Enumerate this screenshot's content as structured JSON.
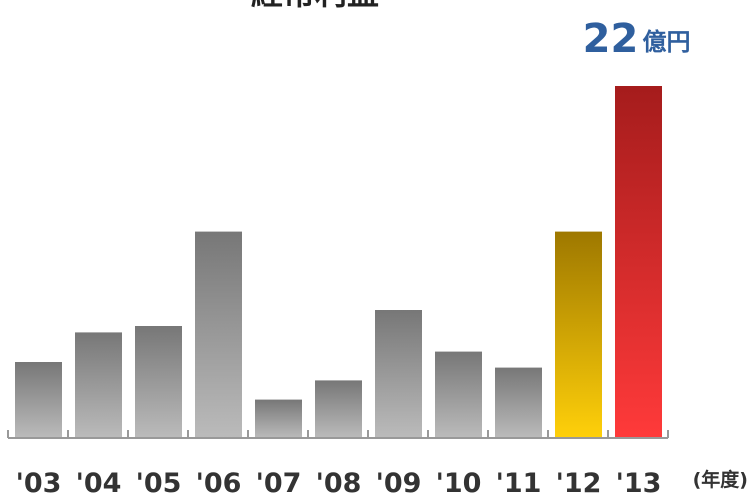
{
  "chart_data": {
    "type": "bar",
    "title": "経常利益",
    "categories": [
      "'03",
      "'04",
      "'05",
      "'06",
      "'07",
      "'08",
      "'09",
      "'10",
      "'11",
      "'12",
      "'13"
    ],
    "values": [
      4.75,
      6.6,
      7.0,
      12.9,
      2.4,
      3.6,
      8.0,
      5.4,
      4.4,
      12.9,
      22
    ],
    "value_labels": [
      null,
      null,
      null,
      null,
      null,
      null,
      null,
      null,
      null,
      null,
      "22"
    ],
    "value_unit": "億円",
    "x_label": "(年度)",
    "colors": [
      "#777777",
      "#777777",
      "#777777",
      "#777777",
      "#777777",
      "#777777",
      "#777777",
      "#777777",
      "#777777",
      "#9e7800",
      "#a51c1c"
    ],
    "colors_bottom": [
      "#bbbbbb",
      "#bbbbbb",
      "#bbbbbb",
      "#bbbbbb",
      "#bbbbbb",
      "#bbbbbb",
      "#bbbbbb",
      "#bbbbbb",
      "#bbbbbb",
      "#ffd00a",
      "#ff3a3a"
    ],
    "label_color": "#2f5f9e",
    "ylim": [
      0,
      22
    ]
  }
}
